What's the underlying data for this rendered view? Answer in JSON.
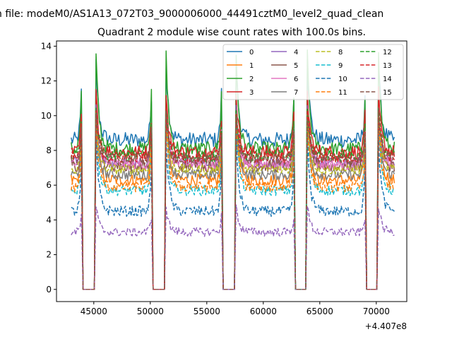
{
  "chart_data": {
    "type": "line",
    "suptitle": "n file: modeM0/AS1A13_072T03_9000006000_44491cztM0_level2_quad_clean",
    "title": "Quadrant 2 module wise count rates with 100.0s bins.",
    "x_offset_label": "+4.407e8",
    "xlim": [
      41700,
      72700
    ],
    "ylim": [
      -0.7,
      14.3
    ],
    "xticks": [
      45000,
      50000,
      55000,
      60000,
      65000,
      70000
    ],
    "xtick_labels": [
      "45000",
      "50000",
      "55000",
      "60000",
      "65000",
      "70000"
    ],
    "yticks": [
      0,
      2,
      4,
      6,
      8,
      10,
      12,
      14
    ],
    "ytick_labels": [
      "0",
      "2",
      "4",
      "6",
      "8",
      "10",
      "12",
      "14"
    ],
    "grid": false,
    "legend_position": "top-right",
    "legend_columns": 4,
    "orbit_segments": [
      [
        43000,
        43900
      ],
      [
        45200,
        50100
      ],
      [
        51400,
        56300
      ],
      [
        57600,
        62700
      ],
      [
        63900,
        69000
      ],
      [
        70200,
        71600
      ]
    ],
    "gaps": [
      [
        43900,
        45200
      ],
      [
        50100,
        51400
      ],
      [
        56300,
        57600
      ],
      [
        62700,
        63900
      ],
      [
        69000,
        70200
      ]
    ],
    "series": [
      {
        "name": "0",
        "color": "#1f77b4",
        "dash": "solid",
        "level": 8.6,
        "noise": 0.45,
        "peak": 13.0
      },
      {
        "name": "1",
        "color": "#ff7f0e",
        "dash": "solid",
        "level": 6.3,
        "noise": 0.35,
        "peak": 10.2
      },
      {
        "name": "2",
        "color": "#2ca02c",
        "dash": "solid",
        "level": 8.1,
        "noise": 0.4,
        "peak": 13.4
      },
      {
        "name": "3",
        "color": "#d62728",
        "dash": "solid",
        "level": 7.9,
        "noise": 0.4,
        "peak": 11.3
      },
      {
        "name": "4",
        "color": "#9467bd",
        "dash": "solid",
        "level": 7.3,
        "noise": 0.35,
        "peak": 10.3
      },
      {
        "name": "5",
        "color": "#8c564b",
        "dash": "solid",
        "level": 7.1,
        "noise": 0.35,
        "peak": 10.0
      },
      {
        "name": "6",
        "color": "#e377c2",
        "dash": "solid",
        "level": 7.2,
        "noise": 0.35,
        "peak": 10.1
      },
      {
        "name": "7",
        "color": "#7f7f7f",
        "dash": "solid",
        "level": 6.6,
        "noise": 0.3,
        "peak": 9.8
      },
      {
        "name": "8",
        "color": "#bcbd22",
        "dash": "dashed",
        "level": 6.9,
        "noise": 0.3,
        "peak": 10.0
      },
      {
        "name": "9",
        "color": "#17becf",
        "dash": "dashed",
        "level": 5.7,
        "noise": 0.3,
        "peak": 9.4
      },
      {
        "name": "10",
        "color": "#1f77b4",
        "dash": "dashed",
        "level": 4.5,
        "noise": 0.3,
        "peak": 8.6
      },
      {
        "name": "11",
        "color": "#ff7f0e",
        "dash": "dashed",
        "level": 5.9,
        "noise": 0.3,
        "peak": 9.6
      },
      {
        "name": "12",
        "color": "#2ca02c",
        "dash": "dashed",
        "level": 7.7,
        "noise": 0.35,
        "peak": 10.4
      },
      {
        "name": "13",
        "color": "#d62728",
        "dash": "dashed",
        "level": 7.6,
        "noise": 0.35,
        "peak": 10.3
      },
      {
        "name": "14",
        "color": "#9467bd",
        "dash": "dashed",
        "level": 3.3,
        "noise": 0.25,
        "peak": 4.8
      },
      {
        "name": "15",
        "color": "#8c564b",
        "dash": "dashed",
        "level": 7.5,
        "noise": 0.35,
        "peak": 10.1
      }
    ]
  }
}
